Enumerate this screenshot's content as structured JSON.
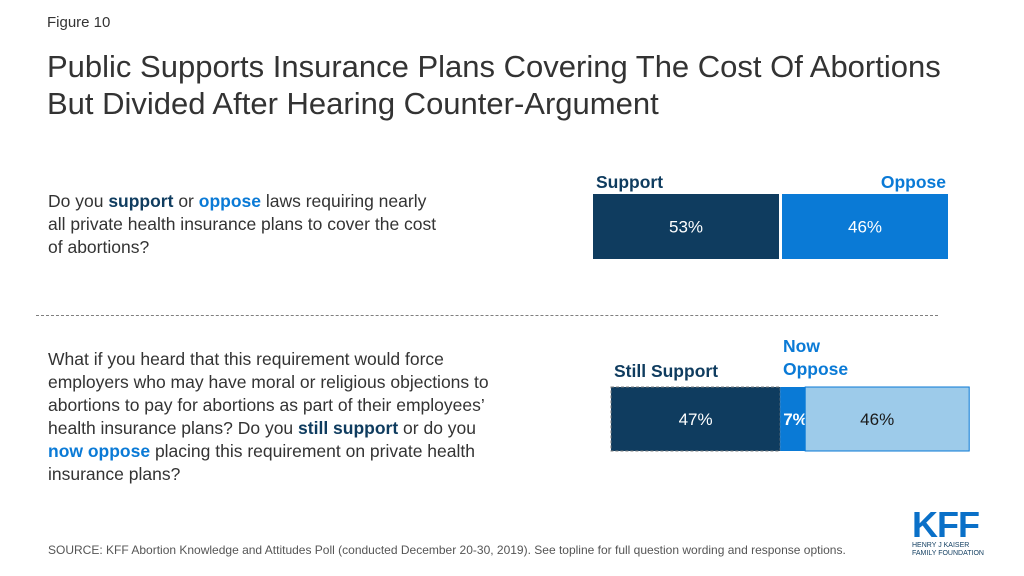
{
  "figure_label": "Figure 10",
  "title": "Public Supports Insurance Plans Covering The Cost Of Abortions But Divided After Hearing Counter-Argument",
  "question1": {
    "pre": "Do you ",
    "kw1": "support",
    "mid": " or ",
    "kw2": "oppose",
    "post": " laws requiring nearly all private health insurance plans to cover the cost of abortions?"
  },
  "question2": {
    "pre": "What if you heard that this requirement would force employers who may have moral or religious objections to abortions to pay for abortions as part of their employees’ health insurance plans? Do you ",
    "kw1": "still support",
    "mid": " or do you ",
    "kw2": "now oppose",
    "post": " placing this requirement on private health insurance plans?"
  },
  "colors": {
    "support": "#0f3c5f",
    "oppose": "#0a7ad6",
    "oppose_light": "#9dcbea"
  },
  "chart_data": [
    {
      "type": "bar",
      "orientation": "horizontal",
      "stacked": true,
      "series": [
        {
          "name": "Support",
          "values": [
            53
          ],
          "label": "53%",
          "color": "#0f3c5f"
        },
        {
          "name": "Oppose",
          "values": [
            46
          ],
          "label": "46%",
          "color": "#0a7ad6"
        }
      ]
    },
    {
      "type": "bar",
      "orientation": "horizontal",
      "stacked": true,
      "series": [
        {
          "name": "Still Support",
          "values": [
            47
          ],
          "label": "47%",
          "color": "#0f3c5f"
        },
        {
          "name": "Now Oppose",
          "values": [
            7
          ],
          "label": "7%",
          "color": "#0a7ad6"
        },
        {
          "name": "",
          "values": [
            46
          ],
          "label": "46%",
          "color": "#9dcbea"
        }
      ]
    }
  ],
  "labels": {
    "support": "Support",
    "oppose": "Oppose",
    "still_support": "Still Support",
    "now_oppose_line1": "Now",
    "now_oppose_line2": "Oppose"
  },
  "source": "SOURCE: KFF Abortion Knowledge and Attitudes Poll (conducted December 20-30, 2019). See topline for full question wording and response options.",
  "logo": {
    "mark": "KFF",
    "line1": "Henry J Kaiser",
    "line2": "Family Foundation"
  }
}
